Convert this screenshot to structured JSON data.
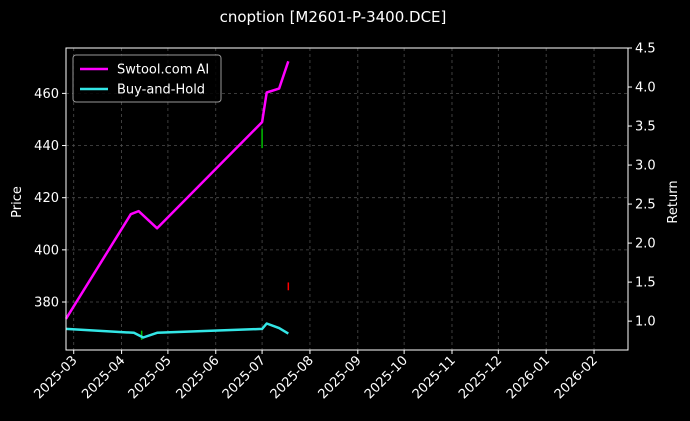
{
  "chart_data": {
    "type": "line",
    "title": "cnoption [M2601-P-3400.DCE]",
    "xlabel": "",
    "ylabel_left": "Price",
    "ylabel_right": "Return",
    "xlim": [
      "2025-02-24",
      "2026-02-23"
    ],
    "ylim_left": [
      361.6,
      477.4
    ],
    "ylim_right": [
      0.63,
      4.5
    ],
    "x_ticks": [
      "2025-03",
      "2025-04",
      "2025-05",
      "2025-06",
      "2025-07",
      "2025-08",
      "2025-09",
      "2025-10",
      "2025-11",
      "2025-12",
      "2026-01",
      "2026-02"
    ],
    "y_ticks_left": [
      380,
      400,
      420,
      440,
      460
    ],
    "y_ticks_right": [
      1.0,
      1.5,
      2.0,
      2.5,
      3.0,
      3.5,
      4.0,
      4.5
    ],
    "grid": true,
    "legend_position": "top-left",
    "series": [
      {
        "name": "Swtool.com AI",
        "axis": "right",
        "color": "#ff00ff",
        "points": [
          [
            "2025-02-24",
            1.03
          ],
          [
            "2025-04-07",
            2.37
          ],
          [
            "2025-04-12",
            2.41
          ],
          [
            "2025-04-24",
            2.19
          ],
          [
            "2025-07-01",
            3.55
          ],
          [
            "2025-07-04",
            3.93
          ],
          [
            "2025-07-12",
            3.98
          ],
          [
            "2025-07-18",
            4.33
          ]
        ]
      },
      {
        "name": "Buy-and-Hold",
        "axis": "right",
        "color": "#33e6e6",
        "points": [
          [
            "2025-02-24",
            0.9
          ],
          [
            "2025-04-09",
            0.85
          ],
          [
            "2025-04-15",
            0.79
          ],
          [
            "2025-04-24",
            0.85
          ],
          [
            "2025-07-01",
            0.9
          ],
          [
            "2025-07-04",
            0.97
          ],
          [
            "2025-07-12",
            0.91
          ],
          [
            "2025-07-18",
            0.84
          ]
        ]
      }
    ],
    "signals": [
      {
        "date": "2025-04-14",
        "low": 365.5,
        "high": 369.0,
        "color": "#00c000"
      },
      {
        "date": "2025-07-01",
        "low": 439.0,
        "high": 446.5,
        "color": "#00c000"
      },
      {
        "date": "2025-07-18",
        "low": 384.5,
        "high": 387.5,
        "color": "#ff0000"
      }
    ]
  }
}
